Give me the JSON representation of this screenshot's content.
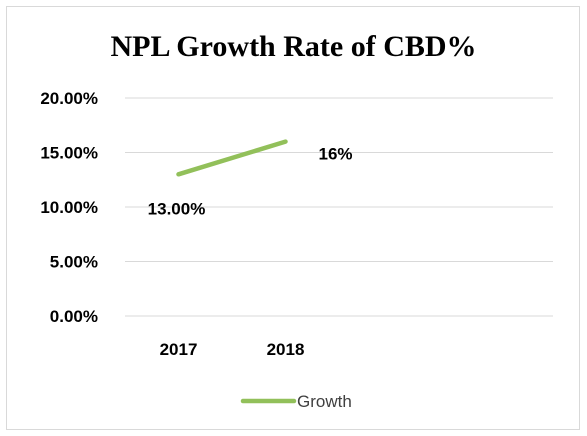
{
  "chart_data": {
    "type": "line",
    "title": "NPL Growth Rate of CBD%",
    "categories": [
      "2017",
      "2018"
    ],
    "series": [
      {
        "name": "Growth",
        "values": [
          13.0,
          16.0
        ],
        "data_labels": [
          "13.00%",
          "16%"
        ],
        "color": "#92c05a"
      }
    ],
    "y_ticks": [
      "0.00%",
      "5.00%",
      "10.00%",
      "15.00%",
      "20.00%"
    ],
    "ylim": [
      0,
      20
    ],
    "grid": true,
    "legend_position": "bottom"
  }
}
